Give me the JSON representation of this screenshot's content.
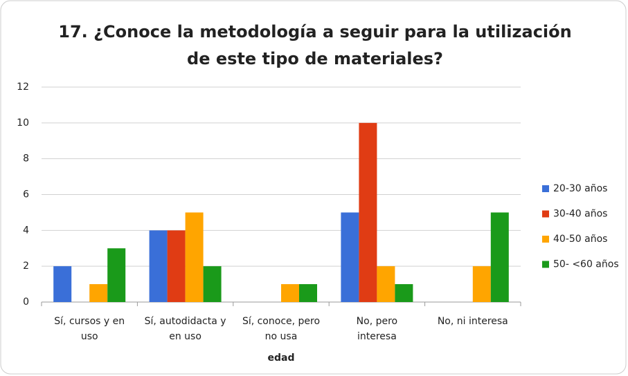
{
  "chart_data": {
    "type": "bar",
    "title": "17. ¿Conoce la metodología a seguir para la utilización\nde este tipo de materiales?",
    "x_label": "edad",
    "categories": [
      "Sí, cursos y en\nuso",
      "Sí, autodidacta y\nen uso",
      "Sí, conoce, pero\nno usa",
      "No, pero\ninteresa",
      "No, ni interesa"
    ],
    "series": [
      {
        "name": "20-30 años",
        "color": "#3a6fd8",
        "values": [
          2,
          4,
          0,
          5,
          0
        ]
      },
      {
        "name": "30-40 años",
        "color": "#e03c14",
        "values": [
          0,
          4,
          0,
          10,
          0
        ]
      },
      {
        "name": "40-50 años",
        "color": "#ffa500",
        "values": [
          1,
          5,
          1,
          2,
          2
        ]
      },
      {
        "name": "50- <60 años",
        "color": "#1a9a1a",
        "values": [
          3,
          2,
          1,
          1,
          5
        ]
      }
    ],
    "ylim": [
      0,
      12
    ],
    "yticks": [
      0,
      2,
      4,
      6,
      8,
      10,
      12
    ],
    "grid": true,
    "legend": "right"
  }
}
